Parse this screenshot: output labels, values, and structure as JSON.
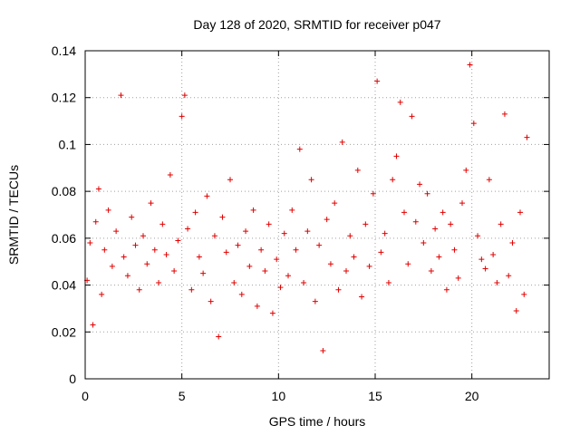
{
  "chart_data": {
    "type": "scatter",
    "title": "Day 128 of 2020, SRMTID for receiver p047",
    "xlabel": "GPS time / hours",
    "ylabel": "SRMTID / TECUs",
    "xlim": [
      0,
      24
    ],
    "ylim": [
      0,
      0.14
    ],
    "x_ticks": [
      0,
      5,
      10,
      15,
      20
    ],
    "x_tick_labels": [
      "0",
      "5",
      "10",
      "15",
      "20"
    ],
    "y_ticks": [
      0,
      0.02,
      0.04,
      0.06,
      0.08,
      0.1,
      0.12,
      0.14
    ],
    "y_tick_labels": [
      "0",
      "0.02",
      "0.04",
      "0.06",
      "0.08",
      "0.1",
      "0.12",
      "0.14"
    ],
    "grid": true,
    "marker": "+",
    "series": [
      {
        "name": "SRMTID",
        "color": "#e00000",
        "x": [
          0.1,
          0.25,
          0.4,
          0.55,
          0.7,
          0.85,
          1.0,
          1.2,
          1.4,
          1.6,
          1.85,
          2.0,
          2.2,
          2.4,
          2.6,
          2.8,
          3.0,
          3.2,
          3.4,
          3.6,
          3.8,
          4.0,
          4.2,
          4.4,
          4.6,
          4.8,
          5.0,
          5.15,
          5.3,
          5.5,
          5.7,
          5.9,
          6.1,
          6.3,
          6.5,
          6.7,
          6.9,
          7.1,
          7.3,
          7.5,
          7.7,
          7.9,
          8.1,
          8.3,
          8.5,
          8.7,
          8.9,
          9.1,
          9.3,
          9.5,
          9.7,
          9.9,
          10.1,
          10.3,
          10.5,
          10.7,
          10.9,
          11.1,
          11.3,
          11.5,
          11.7,
          11.9,
          12.1,
          12.3,
          12.5,
          12.7,
          12.9,
          13.1,
          13.3,
          13.5,
          13.7,
          13.9,
          14.1,
          14.3,
          14.5,
          14.7,
          14.9,
          15.1,
          15.3,
          15.5,
          15.7,
          15.9,
          16.1,
          16.3,
          16.5,
          16.7,
          16.9,
          17.1,
          17.3,
          17.5,
          17.7,
          17.9,
          18.1,
          18.3,
          18.5,
          18.7,
          18.9,
          19.1,
          19.3,
          19.5,
          19.7,
          19.9,
          20.1,
          20.3,
          20.5,
          20.7,
          20.9,
          21.1,
          21.3,
          21.5,
          21.7,
          21.9,
          22.1,
          22.3,
          22.5,
          22.7,
          22.85
        ],
        "y": [
          0.042,
          0.058,
          0.023,
          0.067,
          0.081,
          0.036,
          0.055,
          0.072,
          0.048,
          0.063,
          0.121,
          0.052,
          0.044,
          0.069,
          0.057,
          0.038,
          0.061,
          0.049,
          0.075,
          0.055,
          0.041,
          0.066,
          0.053,
          0.087,
          0.046,
          0.059,
          0.112,
          0.121,
          0.064,
          0.038,
          0.071,
          0.052,
          0.045,
          0.078,
          0.033,
          0.061,
          0.018,
          0.069,
          0.054,
          0.085,
          0.041,
          0.057,
          0.036,
          0.063,
          0.048,
          0.072,
          0.031,
          0.055,
          0.046,
          0.066,
          0.028,
          0.051,
          0.039,
          0.062,
          0.044,
          0.072,
          0.055,
          0.098,
          0.041,
          0.063,
          0.085,
          0.033,
          0.057,
          0.012,
          0.068,
          0.049,
          0.075,
          0.038,
          0.101,
          0.046,
          0.061,
          0.052,
          0.089,
          0.035,
          0.066,
          0.048,
          0.079,
          0.127,
          0.054,
          0.062,
          0.041,
          0.085,
          0.095,
          0.118,
          0.071,
          0.049,
          0.112,
          0.067,
          0.083,
          0.058,
          0.079,
          0.046,
          0.064,
          0.052,
          0.071,
          0.038,
          0.066,
          0.055,
          0.043,
          0.075,
          0.089,
          0.134,
          0.109,
          0.061,
          0.051,
          0.047,
          0.085,
          0.053,
          0.041,
          0.066,
          0.113,
          0.044,
          0.058,
          0.029,
          0.071,
          0.036,
          0.103
        ]
      }
    ]
  }
}
